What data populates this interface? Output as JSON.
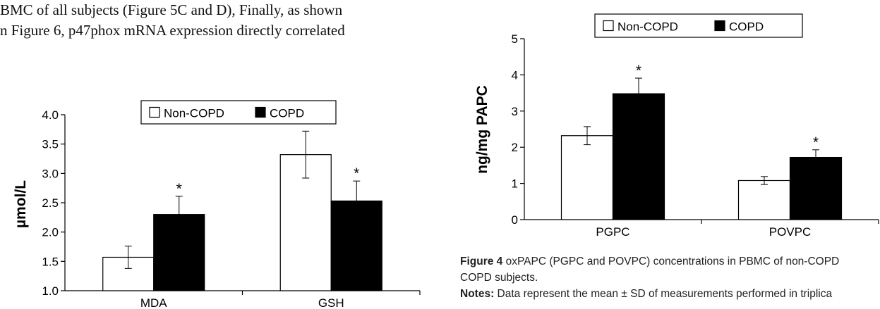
{
  "body_text": {
    "line1": "BMC of all subjects (Figure 5C and D), Finally, as shown",
    "line2": "n Figure 6, p47phox mRNA expression directly correlated"
  },
  "chart_data": [
    {
      "type": "bar",
      "categories": [
        "MDA",
        "GSH"
      ],
      "series": [
        {
          "name": "Non-COPD",
          "values": [
            1.57,
            3.32
          ],
          "errors": [
            0.19,
            0.4
          ],
          "color": "#ffffff"
        },
        {
          "name": "COPD",
          "values": [
            2.3,
            2.53
          ],
          "errors": [
            0.31,
            0.34
          ],
          "color": "#000000"
        }
      ],
      "significance": [
        [
          "",
          ""
        ],
        [
          "*",
          "*"
        ]
      ],
      "xlabel": "",
      "ylabel": "µmol/L",
      "ylim": [
        1.0,
        4.0
      ],
      "yticks": [
        "1.0",
        "1.5",
        "2.0",
        "2.5",
        "3.0",
        "3.5",
        "4.0"
      ],
      "legend": "top-center",
      "grid": false
    },
    {
      "type": "bar",
      "categories": [
        "PGPC",
        "POVPC"
      ],
      "series": [
        {
          "name": "Non-COPD",
          "values": [
            2.32,
            1.08
          ],
          "errors": [
            0.25,
            0.11
          ],
          "color": "#ffffff"
        },
        {
          "name": "COPD",
          "values": [
            3.48,
            1.72
          ],
          "errors": [
            0.43,
            0.21
          ],
          "color": "#000000"
        }
      ],
      "significance": [
        [
          "",
          ""
        ],
        [
          "*",
          "*"
        ]
      ],
      "xlabel": "",
      "ylabel": "ng/mg PAPC",
      "ylim": [
        0,
        5
      ],
      "yticks": [
        "0",
        "1",
        "2",
        "3",
        "4",
        "5"
      ],
      "legend": "top-center",
      "grid": false
    }
  ],
  "caption": {
    "label": "Figure 4",
    "text1": " oxPAPC (PGPC and POVPC) concentrations in PBMC of non-COPD",
    "text2": "COPD subjects.",
    "notes_label": "Notes:",
    "notes_text": " Data represent the mean ± SD of measurements performed in triplica"
  }
}
